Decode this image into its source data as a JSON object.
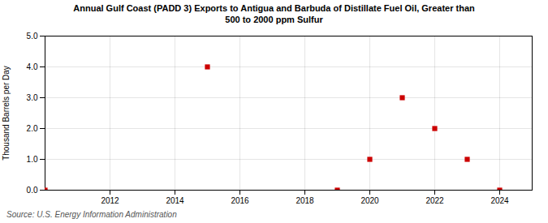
{
  "chart_data": {
    "type": "scatter",
    "title": "Annual Gulf Coast (PADD 3) Exports to Antigua and Barbuda of Distillate Fuel Oil, Greater than\n500 to 2000 ppm Sulfur",
    "ylabel": "Thousand Barrels per Day",
    "annotations": [
      "Source: U.S. Energy Information Administration"
    ],
    "x": [
      2010,
      2015,
      2019,
      2020,
      2021,
      2022,
      2023,
      2024
    ],
    "values": [
      0.0,
      4.0,
      0.0,
      1.0,
      3.0,
      2.0,
      1.0,
      0.0
    ],
    "color": "#cc0000",
    "marker": "square",
    "xlim": [
      2010,
      2025
    ],
    "xticks": [
      2012,
      2014,
      2016,
      2018,
      2020,
      2022,
      2024
    ],
    "ylim": [
      0,
      5
    ],
    "yticks": [
      {
        "value": 0,
        "label": "0.0"
      },
      {
        "value": 1,
        "label": "1.0"
      },
      {
        "value": 2,
        "label": "2.0"
      },
      {
        "value": 3,
        "label": "3.0"
      },
      {
        "value": 4,
        "label": "4.0"
      },
      {
        "value": 5,
        "label": "5.0"
      }
    ],
    "grid": true
  }
}
